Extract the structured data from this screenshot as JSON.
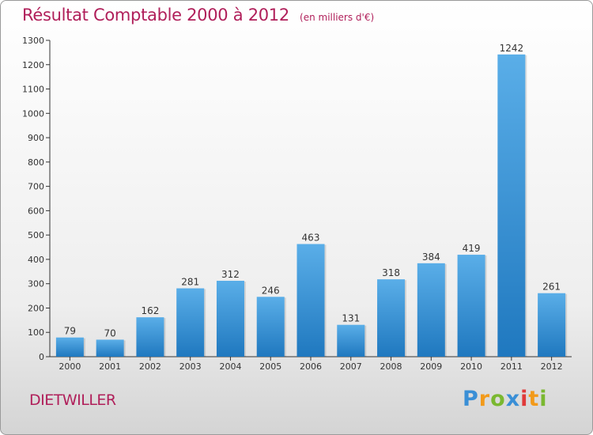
{
  "header": {
    "title": "Résultat Comptable 2000 à 2012",
    "subtitle": "(en milliers d'€)"
  },
  "footer": {
    "commune": "DIETWILLER",
    "logo": "Proxiti"
  },
  "colors": {
    "title": "#b01f5a",
    "bar_light": "#5aaee8",
    "bar_dark": "#1f78bf",
    "axis": "#333333"
  },
  "chart_data": {
    "type": "bar",
    "title": "Résultat Comptable 2000 à 2012",
    "subtitle": "(en milliers d'€)",
    "categories": [
      "2000",
      "2001",
      "2002",
      "2003",
      "2004",
      "2005",
      "2006",
      "2007",
      "2008",
      "2009",
      "2010",
      "2011",
      "2012"
    ],
    "values": [
      79,
      70,
      162,
      281,
      312,
      246,
      463,
      131,
      318,
      384,
      419,
      1242,
      261
    ],
    "xlabel": "",
    "ylabel": "",
    "ylim": [
      0,
      1300
    ],
    "yticks": [
      0,
      100,
      200,
      300,
      400,
      500,
      600,
      700,
      800,
      900,
      1000,
      1100,
      1200,
      1300
    ],
    "grid": false,
    "legend": "none"
  }
}
